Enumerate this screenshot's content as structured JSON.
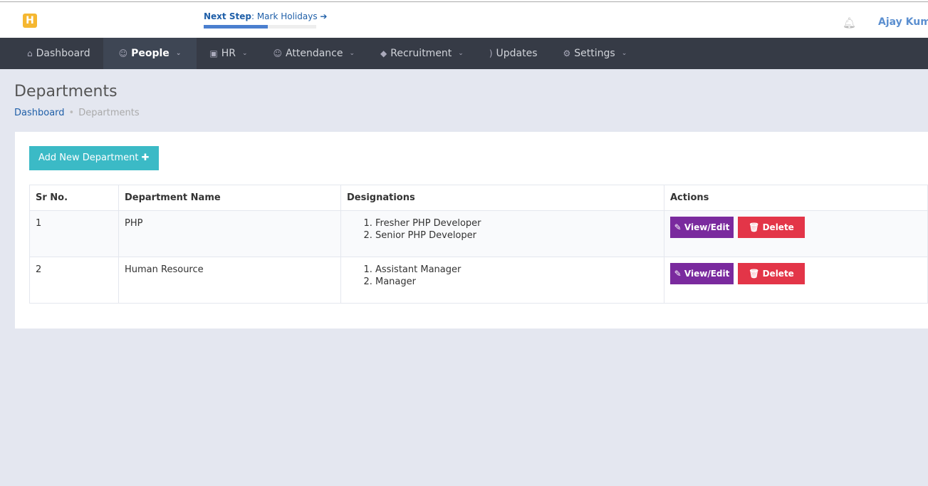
{
  "header": {
    "logo": "H",
    "next_step_label": "Next Step",
    "next_step_value": "Mark Holidays",
    "progress_percent": 57,
    "user": "Ajay Kuma"
  },
  "nav": [
    {
      "label": "Dashboard",
      "icon": "home-icon"
    },
    {
      "label": "People",
      "icon": "user-icon",
      "active": true,
      "dropdown": true
    },
    {
      "label": "HR",
      "icon": "briefcase-icon",
      "dropdown": true
    },
    {
      "label": "Attendance",
      "icon": "users-icon",
      "dropdown": true
    },
    {
      "label": "Recruitment",
      "icon": "graduation-cap-icon",
      "dropdown": true
    },
    {
      "label": "Updates",
      "icon": "rss-icon"
    },
    {
      "label": "Settings",
      "icon": "gear-icon",
      "dropdown": true
    }
  ],
  "page": {
    "title": "Departments",
    "breadcrumb": [
      "Dashboard",
      "Departments"
    ],
    "add_button": "Add New Department"
  },
  "table": {
    "headers": [
      "Sr No.",
      "Department Name",
      "Designations",
      "Actions"
    ],
    "rows": [
      {
        "sr": "1",
        "name": "PHP",
        "designations": [
          "Fresher PHP Developer",
          "Senior PHP Developer"
        ]
      },
      {
        "sr": "2",
        "name": "Human Resource",
        "designations": [
          "Assistant Manager",
          "Manager"
        ]
      }
    ],
    "edit_label": "View/Edit",
    "delete_label": "Delete"
  },
  "colors": {
    "nav_bg": "#363b46",
    "add_button": "#3bbac6",
    "edit_button": "#7a2a9e",
    "delete_button": "#e33548",
    "link": "#1f5fa8"
  }
}
